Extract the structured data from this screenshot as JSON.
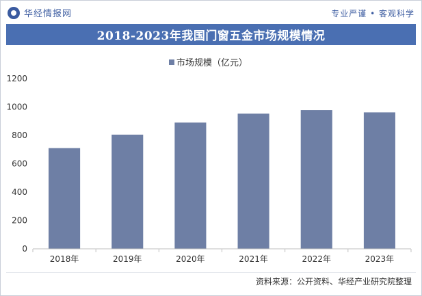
{
  "header": {
    "brand": "华经情报网",
    "slogan": "专业严谨 • 客观科学"
  },
  "title": "2018-2023年我国门窗五金市场规模情况",
  "source": "资料来源：公开资料、华经产业研究院整理",
  "colors": {
    "bar": "#6e7fa5",
    "title_bg": "#4a6fb2",
    "accent": "#3b5ba0"
  },
  "chart_data": {
    "type": "bar",
    "categories": [
      "2018年",
      "2019年",
      "2020年",
      "2021年",
      "2022年",
      "2023年"
    ],
    "series": [
      {
        "name": "市场规模（亿元）",
        "values": [
          710,
          805,
          890,
          953,
          978,
          962
        ]
      }
    ],
    "yticks": [
      "0",
      "200",
      "400",
      "600",
      "800",
      "1000",
      "1200"
    ],
    "ylim": [
      0,
      1200
    ],
    "legend": "top-center",
    "grid": false
  }
}
